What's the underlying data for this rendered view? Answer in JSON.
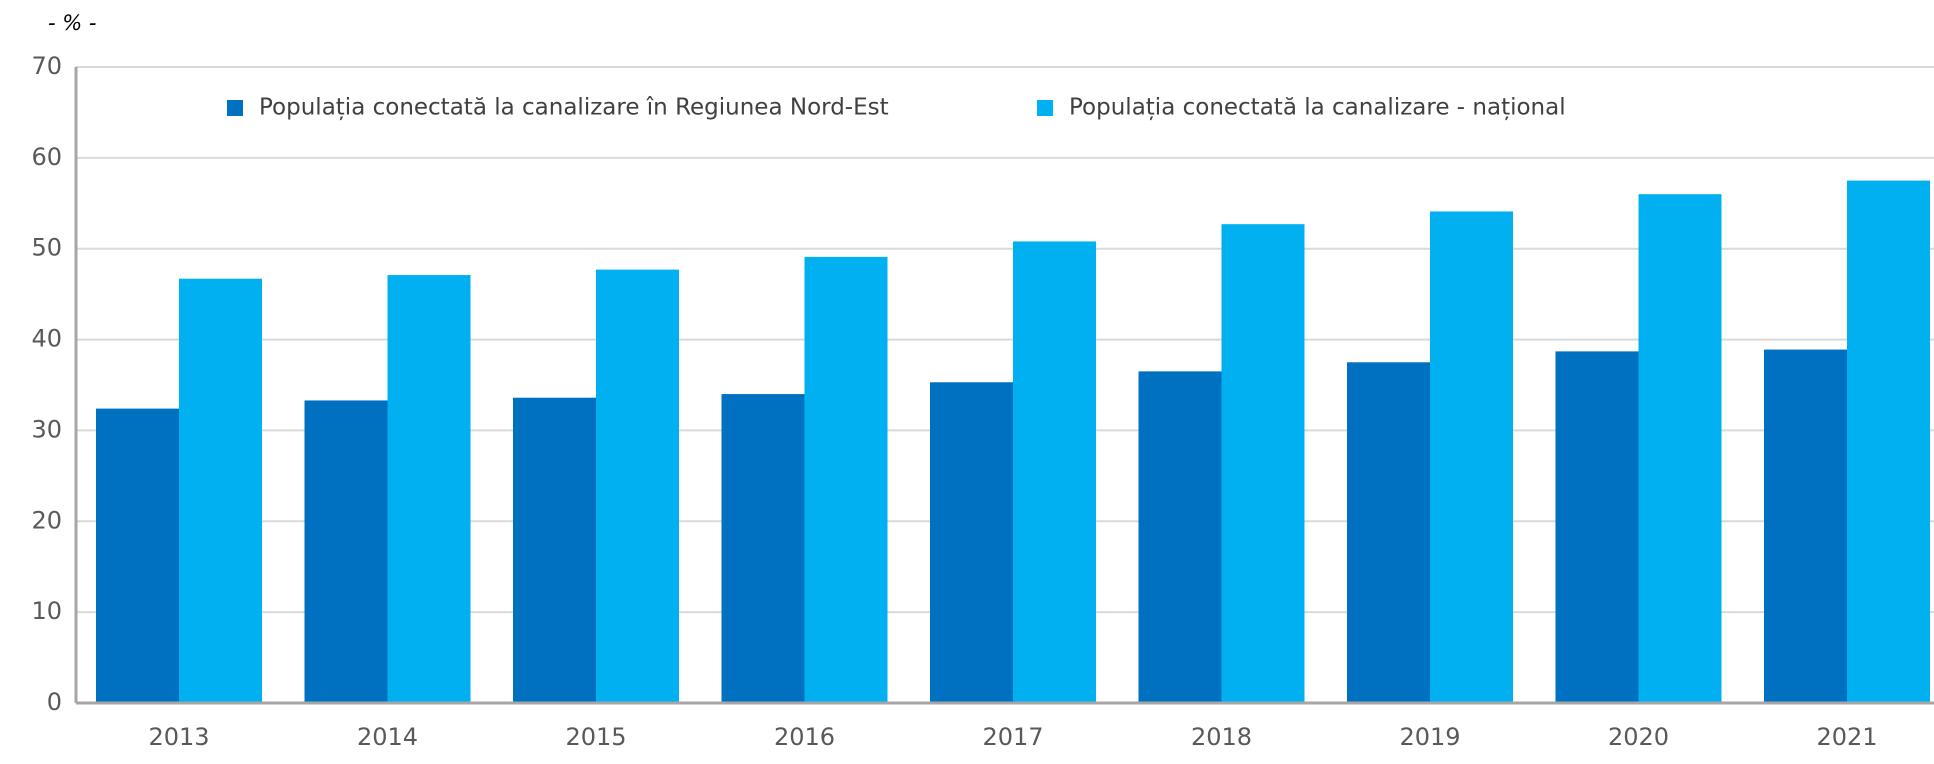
{
  "chart_data": {
    "type": "bar",
    "subtitle": "- % -",
    "categories": [
      "2013",
      "2014",
      "2015",
      "2016",
      "2017",
      "2018",
      "2019",
      "2020",
      "2021"
    ],
    "series": [
      {
        "name": "Populația conectată la canalizare în Regiunea Nord-Est",
        "color": "#0070c0",
        "values": [
          32.4,
          33.3,
          33.6,
          34.0,
          35.3,
          36.5,
          37.5,
          38.7,
          38.9
        ]
      },
      {
        "name": "Populația conectată la canalizare - național",
        "color": "#00b0f0",
        "values": [
          46.7,
          47.1,
          47.7,
          49.1,
          50.8,
          52.7,
          54.1,
          56.0,
          57.5
        ]
      }
    ],
    "ylim": [
      0,
      70
    ],
    "yticks": [
      0,
      10,
      20,
      30,
      40,
      50,
      60,
      70
    ],
    "grid": true,
    "legend": "top"
  }
}
